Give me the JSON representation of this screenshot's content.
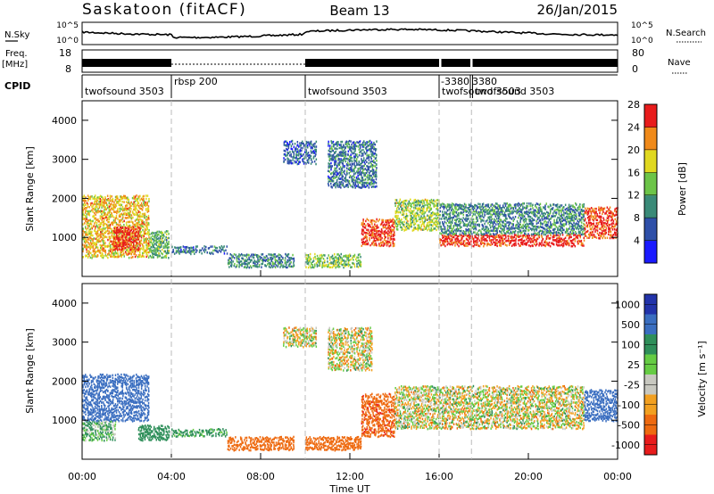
{
  "header": {
    "title": "Saskatoon (fitACF)",
    "beam": "Beam 13",
    "date": "26/Jan/2015"
  },
  "labels": {
    "nsky": "N.Sky",
    "freq_line1": "Freq.",
    "freq_line2": "[MHz]",
    "cpid": "CPID",
    "nsearch": "N.Search",
    "nave": "Nave",
    "x_axis": "Time UT",
    "y_axis": "Slant Range [km]"
  },
  "noise_axis": {
    "left_top": "10^5",
    "left_bottom": "10^0",
    "right_top": "10^5",
    "right_bottom": "10^0"
  },
  "freq_axis": {
    "left_top": "18",
    "left_bottom": "8",
    "right_top": "80",
    "right_bottom": "0"
  },
  "cpid_segments": [
    {
      "label": "twofsound 3503",
      "start_h": 0.0
    },
    {
      "label": "rbsp 200",
      "start_h": 4.0
    },
    {
      "label": "twofsound 3503",
      "start_h": 10.0
    },
    {
      "label": "-3380",
      "start_h": 16.0
    },
    {
      "label": "3380",
      "start_h": 17.4
    },
    {
      "label": "twofsound 3503",
      "start_h": 16.0
    },
    {
      "label": "twofsound 3503",
      "start_h": 17.5
    }
  ],
  "power_colorbar": {
    "label": "Power [dB]",
    "ticks": [
      "4",
      "8",
      "12",
      "16",
      "20",
      "24",
      "28"
    ],
    "colors": [
      "#1a1aff",
      "#2e4fa8",
      "#3a8a78",
      "#6cc448",
      "#e0d820",
      "#f08a1a",
      "#e81c1c"
    ]
  },
  "velocity_colorbar": {
    "label": "Velocity [m s⁻¹]",
    "ticks": [
      "1000",
      "500",
      "100",
      "25",
      "-25",
      "-100",
      "-500",
      "-1000"
    ],
    "colors": [
      "#2233aa",
      "#3a6ec0",
      "#2f8f5a",
      "#66cc44",
      "#c8c8c0",
      "#f2a020",
      "#ee6a10",
      "#e81c1c"
    ]
  },
  "chart_data": {
    "type": "heatmap",
    "title": "Saskatoon (fitACF)",
    "xlabel": "Time UT",
    "ylabel": "Slant Range [km]",
    "xlim": [
      0,
      24
    ],
    "ylim": [
      0,
      4500
    ],
    "x_ticks": [
      "00:00",
      "04:00",
      "08:00",
      "12:00",
      "16:00",
      "20:00",
      "00:00"
    ],
    "y_ticks": [
      "1000",
      "2000",
      "3000",
      "4000"
    ],
    "panels": [
      {
        "name": "Power",
        "unit": "dB",
        "regions": [
          {
            "t0": 0.0,
            "t1": 3.0,
            "r0": 500,
            "r1": 2100,
            "level": 0.7
          },
          {
            "t0": 1.4,
            "t1": 2.6,
            "r0": 700,
            "r1": 1300,
            "level": 0.95
          },
          {
            "t0": 3.0,
            "t1": 3.9,
            "r0": 500,
            "r1": 1200,
            "level": 0.45
          },
          {
            "t0": 4.0,
            "t1": 6.5,
            "r0": 600,
            "r1": 800,
            "level": 0.3
          },
          {
            "t0": 6.5,
            "t1": 9.5,
            "r0": 250,
            "r1": 600,
            "level": 0.35
          },
          {
            "t0": 9.0,
            "t1": 10.5,
            "r0": 2900,
            "r1": 3500,
            "level": 0.25
          },
          {
            "t0": 10.0,
            "t1": 12.5,
            "r0": 250,
            "r1": 600,
            "level": 0.5
          },
          {
            "t0": 11.0,
            "t1": 13.2,
            "r0": 2300,
            "r1": 3500,
            "level": 0.3
          },
          {
            "t0": 12.5,
            "t1": 14.0,
            "r0": 800,
            "r1": 1500,
            "level": 0.9
          },
          {
            "t0": 14.0,
            "t1": 16.0,
            "r0": 1200,
            "r1": 2000,
            "level": 0.55
          },
          {
            "t0": 16.0,
            "t1": 22.5,
            "r0": 800,
            "r1": 1100,
            "level": 0.95
          },
          {
            "t0": 16.0,
            "t1": 22.5,
            "r0": 1100,
            "r1": 1900,
            "level": 0.35
          },
          {
            "t0": 22.5,
            "t1": 24.0,
            "r0": 1000,
            "r1": 1800,
            "level": 0.9
          }
        ]
      },
      {
        "name": "Velocity",
        "unit": "m s⁻¹",
        "regions": [
          {
            "t0": 0.0,
            "t1": 1.5,
            "r0": 500,
            "r1": 1000,
            "value": 100
          },
          {
            "t0": 0.0,
            "t1": 3.0,
            "r0": 1000,
            "r1": 2200,
            "value": 800
          },
          {
            "t0": 2.5,
            "t1": 3.9,
            "r0": 500,
            "r1": 900,
            "value": 300
          },
          {
            "t0": 4.0,
            "t1": 6.5,
            "r0": 600,
            "r1": 800,
            "value": 150
          },
          {
            "t0": 6.5,
            "t1": 9.5,
            "r0": 250,
            "r1": 600,
            "value": -300
          },
          {
            "t0": 9.0,
            "t1": 10.5,
            "r0": 2900,
            "r1": 3400,
            "value": 0
          },
          {
            "t0": 10.0,
            "t1": 12.5,
            "r0": 250,
            "r1": 600,
            "value": -300
          },
          {
            "t0": 11.0,
            "t1": 13.0,
            "r0": 2300,
            "r1": 3400,
            "value": 0
          },
          {
            "t0": 12.5,
            "t1": 14.0,
            "r0": 600,
            "r1": 1700,
            "value": -400
          },
          {
            "t0": 14.0,
            "t1": 22.5,
            "r0": 800,
            "r1": 1900,
            "value": 0
          },
          {
            "t0": 22.5,
            "t1": 24.0,
            "r0": 1000,
            "r1": 1800,
            "value": 700
          }
        ]
      }
    ]
  }
}
